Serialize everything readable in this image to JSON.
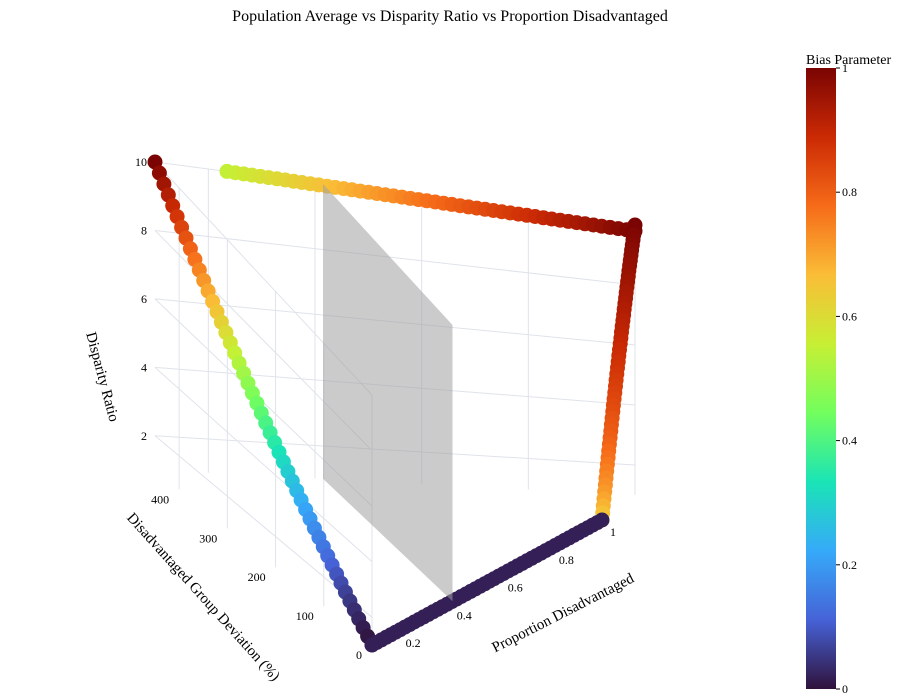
{
  "chart_data": {
    "type": "scatter3d",
    "title": "Population Average vs Disparity Ratio vs Proportion Disadvantaged",
    "axes": {
      "x": {
        "label": "Proportion Disadvantaged",
        "ticks": [
          "0.2",
          "0.4",
          "0.6",
          "0.8",
          "1"
        ],
        "range": [
          0.1,
          1.0
        ]
      },
      "y": {
        "label": "Disadvantaged Group Deviation (%)",
        "ticks": [
          "0",
          "100",
          "200",
          "300",
          "400"
        ],
        "range": [
          0,
          450
        ]
      },
      "z": {
        "label": "Disparity Ratio",
        "ticks": [
          "2",
          "4",
          "6",
          "8",
          "10"
        ],
        "range": [
          1,
          10
        ]
      }
    },
    "colorbar": {
      "title": "Bias Parameter",
      "ticks": [
        "0",
        "0.2",
        "0.4",
        "0.6",
        "0.8",
        "1"
      ],
      "range": [
        0,
        1
      ],
      "colorscale": [
        "#30123b",
        "#4662d7",
        "#36aaf9",
        "#1ae4b6",
        "#72fe5e",
        "#c7ef34",
        "#fabd37",
        "#f66b19",
        "#cb2a04",
        "#7a0403"
      ]
    },
    "series": [
      {
        "points_per_edge": 50
      }
    ],
    "plane": {
      "color": "#a0a0a0",
      "opacity": 0.55
    }
  }
}
